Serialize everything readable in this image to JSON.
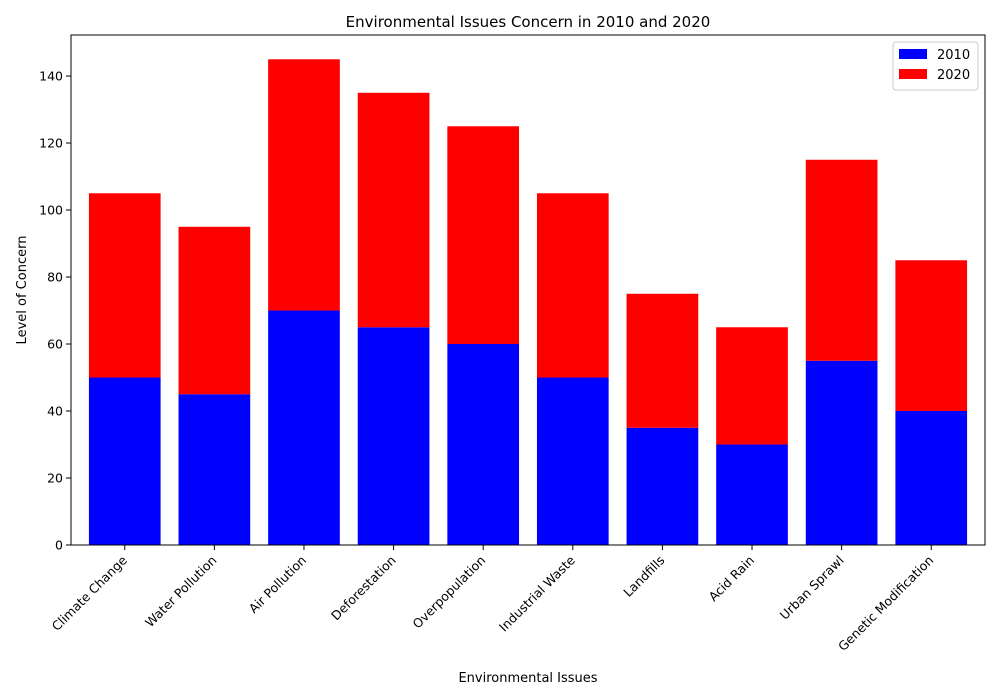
{
  "chart_data": {
    "type": "bar",
    "stacked": true,
    "title": "Environmental Issues Concern in 2010 and 2020",
    "xlabel": "Environmental Issues",
    "ylabel": "Level of Concern",
    "categories": [
      "Climate Change",
      "Water Pollution",
      "Air Pollution",
      "Deforestation",
      "Overpopulation",
      "Industrial Waste",
      "Landfills",
      "Acid Rain",
      "Urban Sprawl",
      "Genetic Modification"
    ],
    "series": [
      {
        "name": "2010",
        "color": "#0000ff",
        "values": [
          50,
          45,
          70,
          65,
          60,
          50,
          35,
          30,
          55,
          40
        ]
      },
      {
        "name": "2020",
        "color": "#ff0000",
        "values": [
          55,
          50,
          75,
          70,
          65,
          55,
          40,
          35,
          60,
          45
        ]
      }
    ],
    "ylim": [
      0,
      152.25
    ],
    "yticks": [
      0,
      20,
      40,
      60,
      80,
      100,
      120,
      140
    ],
    "legend": "top-right",
    "grid": false
  }
}
